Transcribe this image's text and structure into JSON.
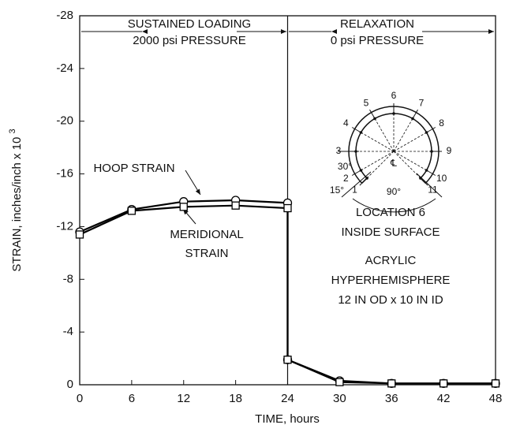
{
  "chart_data": {
    "type": "line",
    "x_label": "TIME, hours",
    "y_label": "STRAIN, inches/inch x 10",
    "y_label_exponent": "3",
    "x": [
      0,
      6,
      12,
      18,
      24,
      24,
      30,
      36,
      42,
      48
    ],
    "series": [
      {
        "name": "HOOP STRAIN",
        "color": "#000000",
        "marker": "circle",
        "values": [
          -11.6,
          -13.3,
          -13.9,
          -14.0,
          -13.8,
          -1.9,
          -0.3,
          -0.1,
          -0.1,
          -0.1
        ]
      },
      {
        "name": "MERIDIONAL STRAIN",
        "color": "#000000",
        "marker": "square",
        "values": [
          -11.4,
          -13.2,
          -13.5,
          -13.6,
          -13.4,
          -1.9,
          -0.2,
          -0.1,
          -0.1,
          -0.1
        ]
      }
    ],
    "xlim": [
      0,
      48
    ],
    "ylim": [
      0,
      -28
    ],
    "xticks": [
      0,
      6,
      12,
      18,
      24,
      30,
      36,
      42,
      48
    ],
    "yticks": [
      0,
      -4,
      -8,
      -12,
      -16,
      -20,
      -24,
      -28
    ],
    "phase_boundary": 24,
    "annotations": {
      "sustained_1": "SUSTAINED LOADING",
      "sustained_2": "2000 psi PRESSURE",
      "relax_1": "RELAXATION",
      "relax_2": "0 psi PRESSURE",
      "meridional_1": "MERIDIONAL",
      "meridional_2": "STRAIN",
      "location": "LOCATION 6",
      "surface": "INSIDE SURFACE",
      "material": "ACRYLIC",
      "shape": "HYPERHEMISPHERE",
      "size": "12 IN OD x 10 IN ID"
    },
    "diagram": {
      "labels": [
        "1",
        "2",
        "3",
        "4",
        "5",
        "6",
        "7",
        "8",
        "9",
        "10",
        "11"
      ],
      "angle_30": "30°",
      "angle_15": "15°",
      "angle_90": "90°",
      "centerline": "℄"
    }
  }
}
